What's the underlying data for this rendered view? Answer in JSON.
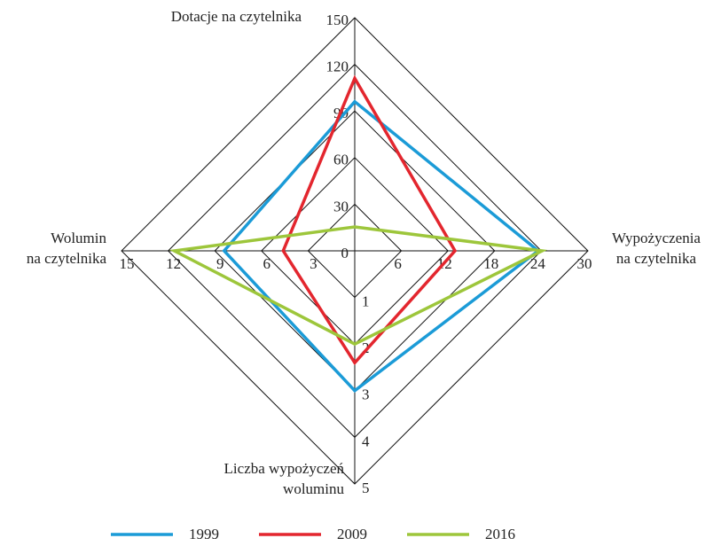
{
  "chart_data": {
    "type": "radar",
    "axes": [
      {
        "label": [
          "Dotacje na czytelnika"
        ],
        "lim": [
          0,
          150
        ],
        "ticks": [
          0,
          30,
          60,
          90,
          120,
          150
        ]
      },
      {
        "label": [
          "Wypożyczenia",
          "na czytelnika"
        ],
        "lim": [
          0,
          30
        ],
        "ticks": [
          6,
          12,
          18,
          24,
          30
        ]
      },
      {
        "label": [
          "Liczba wypożyczeń",
          "woluminu"
        ],
        "lim": [
          0,
          5
        ],
        "ticks": [
          1,
          2,
          3,
          4,
          5
        ]
      },
      {
        "label": [
          "Wolumin",
          "na czytelnika"
        ],
        "lim": [
          0,
          15
        ],
        "ticks": [
          3,
          6,
          9,
          12,
          15
        ]
      }
    ],
    "series": [
      {
        "name": "1999",
        "color": "#1b9bd7",
        "values": [
          96,
          23.6,
          3.0,
          8.4
        ]
      },
      {
        "name": "2009",
        "color": "#e3262e",
        "values": [
          111,
          12.9,
          2.4,
          4.6
        ]
      },
      {
        "name": "2016",
        "color": "#9dc63b",
        "values": [
          15.4,
          24.1,
          2.0,
          11.6
        ]
      }
    ],
    "legend": "bottom"
  }
}
